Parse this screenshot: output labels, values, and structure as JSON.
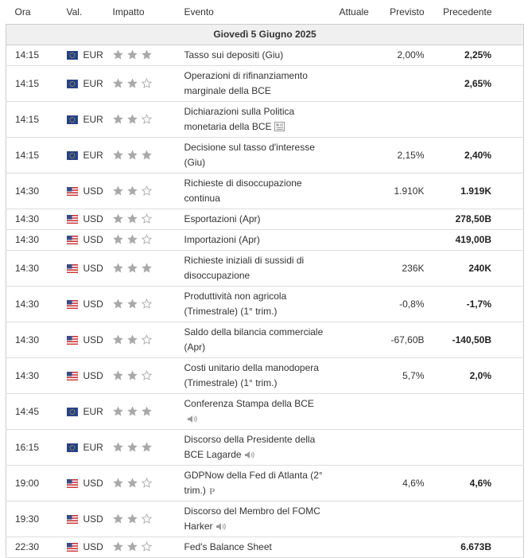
{
  "header": {
    "columns": [
      "Ora",
      "Val.",
      "Impatto",
      "Evento",
      "Attuale",
      "Previsto",
      "Precedente"
    ]
  },
  "date": "Giovedì 5 Giugno 2025",
  "rows": [
    {
      "time": "14:15",
      "currency": "EUR",
      "impact": 3,
      "event": "Tasso sui depositi (Giu)",
      "forecast": "2,00%",
      "previous": "2,25%"
    },
    {
      "time": "14:15",
      "currency": "EUR",
      "impact": 2,
      "event": "Operazioni di rifinanziamento marginale della BCE",
      "previous": "2,65%"
    },
    {
      "time": "14:15",
      "currency": "EUR",
      "impact": 2,
      "event": "Dichiarazioni sulla Politica monetaria della BCE",
      "icon": "doc"
    },
    {
      "time": "14:15",
      "currency": "EUR",
      "impact": 3,
      "event": "Decisione sul tasso d'interesse (Giu)",
      "forecast": "2,15%",
      "previous": "2,40%"
    },
    {
      "time": "14:30",
      "currency": "USD",
      "impact": 2,
      "event": "Richieste di disoccupazione continua",
      "forecast": "1.910K",
      "previous": "1.919K"
    },
    {
      "time": "14:30",
      "currency": "USD",
      "impact": 2,
      "event": "Esportazioni (Apr)",
      "previous": "278,50B"
    },
    {
      "time": "14:30",
      "currency": "USD",
      "impact": 2,
      "event": "Importazioni (Apr)",
      "previous": "419,00B"
    },
    {
      "time": "14:30",
      "currency": "USD",
      "impact": 3,
      "event": "Richieste iniziali di sussidi di disoccupazione",
      "forecast": "236K",
      "previous": "240K"
    },
    {
      "time": "14:30",
      "currency": "USD",
      "impact": 2,
      "event": "Produttività non agricola (Trimestrale) (1° trim.)",
      "forecast": "-0,8%",
      "previous": "-1,7%"
    },
    {
      "time": "14:30",
      "currency": "USD",
      "impact": 2,
      "event": "Saldo della bilancia commerciale (Apr)",
      "forecast": "-67,60B",
      "previous": "-140,50B"
    },
    {
      "time": "14:30",
      "currency": "USD",
      "impact": 2,
      "event": "Costi unitario della manodopera (Trimestrale) (1° trim.)",
      "forecast": "5,7%",
      "previous": "2,0%"
    },
    {
      "time": "14:45",
      "currency": "EUR",
      "impact": 3,
      "event": "Conferenza Stampa della BCE",
      "icon": "sound"
    },
    {
      "time": "16:15",
      "currency": "EUR",
      "impact": 3,
      "event": "Discorso della Presidente della BCE Lagarde",
      "icon": "sound"
    },
    {
      "time": "19:00",
      "currency": "USD",
      "impact": 2,
      "event": "GDPNow della Fed di Atlanta (2° trim.)",
      "forecast": "4,6%",
      "previous": "4,6%",
      "icon": "p"
    },
    {
      "time": "19:30",
      "currency": "USD",
      "impact": 2,
      "event": "Discorso del Membro del FOMC Harker",
      "icon": "sound"
    },
    {
      "time": "22:30",
      "currency": "USD",
      "impact": 2,
      "event": "Fed's Balance Sheet",
      "previous": "6.673B"
    }
  ]
}
